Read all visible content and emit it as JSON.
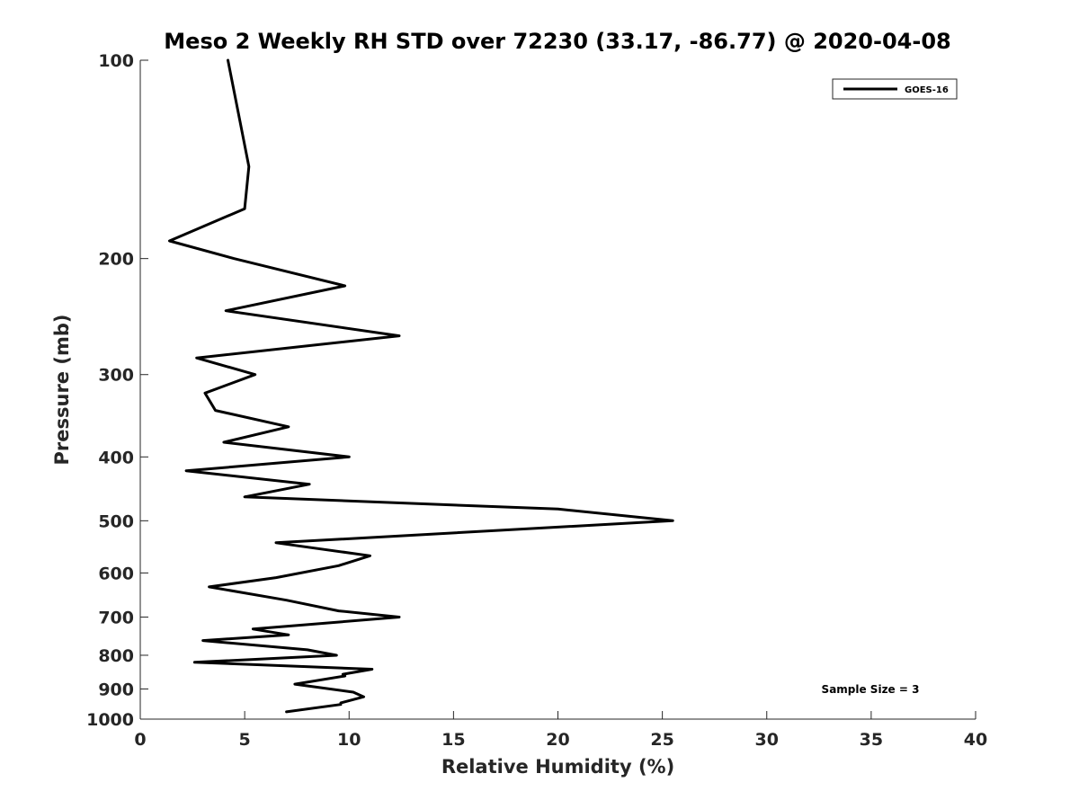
{
  "chart_data": {
    "type": "line",
    "title": "Meso 2 Weekly RH STD over 72230 (33.17, -86.77) @ 2020-04-08",
    "xlabel": "Relative Humidity (%)",
    "ylabel": "Pressure (mb)",
    "xlim": [
      0,
      40
    ],
    "ylim": [
      100,
      1000
    ],
    "y_scale": "log",
    "y_reversed": true,
    "grid": false,
    "legend_position": "top-right",
    "x_ticks": [
      0,
      5,
      10,
      15,
      20,
      25,
      30,
      35,
      40
    ],
    "x_tick_labels": [
      "0",
      "5",
      "10",
      "15",
      "20",
      "25",
      "30",
      "35",
      "40"
    ],
    "y_ticks": [
      100,
      200,
      300,
      400,
      500,
      600,
      700,
      800,
      900,
      1000
    ],
    "y_tick_labels": [
      "100",
      "200",
      "300",
      "400",
      "500",
      "600",
      "700",
      "800",
      "900",
      "1000"
    ],
    "series": [
      {
        "name": "GOES-16",
        "color": "#000000",
        "x": [
          4.2,
          4.8,
          5.2,
          5.0,
          1.4,
          4.5,
          9.8,
          4.1,
          12.4,
          2.7,
          5.5,
          3.1,
          3.6,
          7.1,
          4.0,
          10.0,
          2.2,
          8.1,
          5.0,
          20.0,
          25.5,
          6.5,
          11.0,
          9.5,
          6.5,
          3.3,
          7.0,
          9.5,
          12.4,
          5.4,
          7.1,
          3.0,
          8.0,
          9.4,
          2.6,
          11.1,
          9.7,
          9.8,
          7.4,
          10.2,
          10.7,
          9.6,
          9.6,
          7.0
        ],
        "y": [
          100,
          125,
          145,
          168,
          188,
          200,
          220,
          240,
          262,
          283,
          300,
          320,
          340,
          360,
          380,
          400,
          420,
          440,
          460,
          480,
          500,
          540,
          565,
          585,
          610,
          630,
          660,
          685,
          700,
          730,
          745,
          760,
          785,
          800,
          820,
          840,
          855,
          860,
          885,
          910,
          925,
          945,
          950,
          975
        ]
      }
    ],
    "annotations": [
      "Sample Size = 3"
    ]
  }
}
